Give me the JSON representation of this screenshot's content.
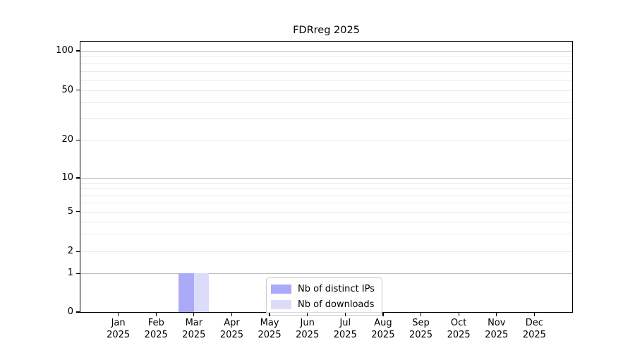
{
  "chart_data": {
    "type": "bar",
    "title": "FDRreg 2025",
    "categories": [
      {
        "label": "Jan",
        "sublabel": "2025"
      },
      {
        "label": "Feb",
        "sublabel": "2025"
      },
      {
        "label": "Mar",
        "sublabel": "2025"
      },
      {
        "label": "Apr",
        "sublabel": "2025"
      },
      {
        "label": "May",
        "sublabel": "2025"
      },
      {
        "label": "Jun",
        "sublabel": "2025"
      },
      {
        "label": "Jul",
        "sublabel": "2025"
      },
      {
        "label": "Aug",
        "sublabel": "2025"
      },
      {
        "label": "Sep",
        "sublabel": "2025"
      },
      {
        "label": "Oct",
        "sublabel": "2025"
      },
      {
        "label": "Nov",
        "sublabel": "2025"
      },
      {
        "label": "Dec",
        "sublabel": "2025"
      }
    ],
    "series": [
      {
        "name": "Nb of distinct IPs",
        "color": "#aaaaf8",
        "values": [
          0,
          0,
          1,
          0,
          0,
          0,
          0,
          0,
          0,
          0,
          0,
          0
        ]
      },
      {
        "name": "Nb of downloads",
        "color": "#dcdcfa",
        "values": [
          0,
          0,
          1,
          0,
          0,
          0,
          0,
          0,
          0,
          0,
          0,
          0
        ]
      }
    ],
    "y_axis": {
      "scale": "symlog",
      "range": [
        0,
        100
      ],
      "ticks": [
        0,
        1,
        2,
        5,
        10,
        20,
        50,
        100
      ],
      "major_gridlines": [
        1,
        10,
        100
      ],
      "minor_gridlines": [
        3,
        4,
        6,
        7,
        8,
        9,
        30,
        40,
        60,
        70,
        80,
        90
      ]
    },
    "legend": {
      "position": "lower center inside"
    },
    "grid": "horizontal"
  },
  "colors": {
    "bar_distinct_ips": "#aaaaf8",
    "bar_downloads": "#dcdcfa",
    "major_grid": "#bdbdbd",
    "minor_grid": "#e9e9e9",
    "spine": "#000000",
    "text": "#000000",
    "legend_border": "#cccccc"
  }
}
